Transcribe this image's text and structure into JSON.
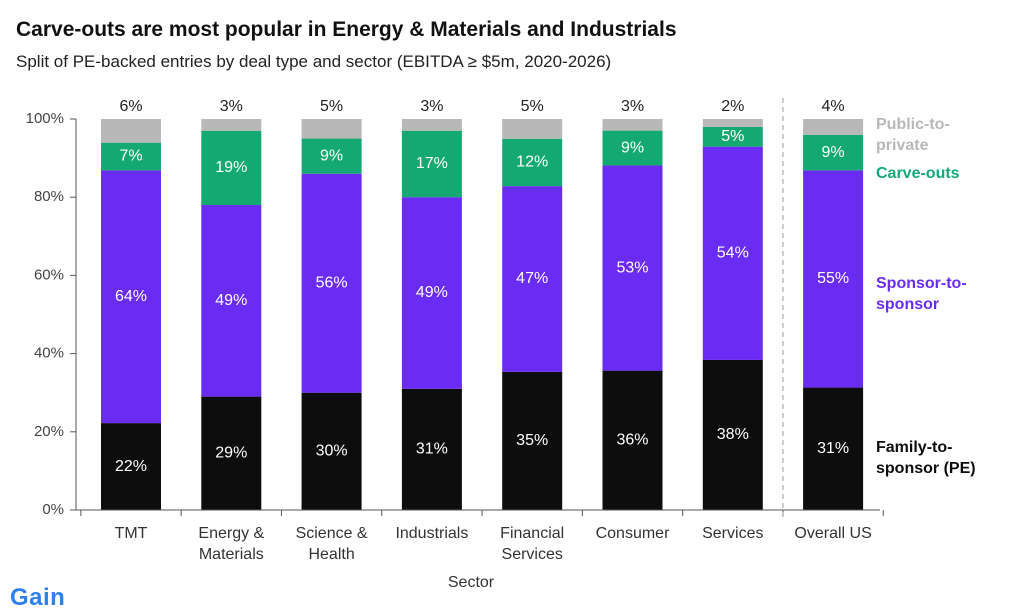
{
  "header": {
    "title": "Carve-outs are most popular in Energy & Materials and Industrials",
    "subtitle": "Split of PE-backed entries by deal type and sector (EBITDA ≥ $5m, 2020-2026)"
  },
  "brand": {
    "logo_text": "Gain",
    "color": "#2f7ff0"
  },
  "chart_data": {
    "type": "bar",
    "stacked": true,
    "xlabel": "Sector",
    "ylabel": "",
    "ylim": [
      0,
      100
    ],
    "yticks": [
      "0%",
      "20%",
      "40%",
      "60%",
      "80%",
      "100%"
    ],
    "grid": false,
    "legend_placement": "right",
    "categories": [
      [
        "TMT"
      ],
      [
        "Energy &",
        "Materials"
      ],
      [
        "Science &",
        "Health"
      ],
      [
        "Industrials"
      ],
      [
        "Financial",
        "Services"
      ],
      [
        "Consumer"
      ],
      [
        "Services"
      ],
      [
        "Overall US"
      ]
    ],
    "separator_before_index": 7,
    "series": [
      {
        "name": [
          "Family-to-",
          "sponsor (PE)"
        ],
        "color": "#0d0d0d",
        "label_color": "#ffffff",
        "values": [
          22,
          29,
          30,
          31,
          35,
          36,
          38,
          31
        ]
      },
      {
        "name": [
          "Sponsor-to-",
          "sponsor"
        ],
        "color": "#6a2bf3",
        "label_color": "#ffffff",
        "values": [
          64,
          49,
          56,
          49,
          47,
          53,
          54,
          55
        ]
      },
      {
        "name": [
          "Carve-outs"
        ],
        "color": "#14a873",
        "label_color": "#ffffff",
        "values": [
          7,
          19,
          9,
          17,
          12,
          9,
          5,
          9
        ]
      },
      {
        "name": [
          "Public-to-",
          "private"
        ],
        "color": "#b8b8b8",
        "label_color": "#222222",
        "values": [
          6,
          3,
          5,
          3,
          5,
          3,
          2,
          4
        ]
      }
    ],
    "data_labels": [
      [
        "22%",
        "29%",
        "30%",
        "31%",
        "35%",
        "36%",
        "38%",
        "31%"
      ],
      [
        "64%",
        "49%",
        "56%",
        "49%",
        "47%",
        "53%",
        "54%",
        "55%"
      ],
      [
        "7%",
        "19%",
        "9%",
        "17%",
        "12%",
        "9%",
        "5%",
        "9%"
      ],
      [
        "6%",
        "3%",
        "5%",
        "3%",
        "5%",
        "3%",
        "2%",
        "4%"
      ]
    ],
    "legend_colors": [
      "#0d0d0d",
      "#6a2bf3",
      "#14a873",
      "#b8b8b8"
    ]
  }
}
